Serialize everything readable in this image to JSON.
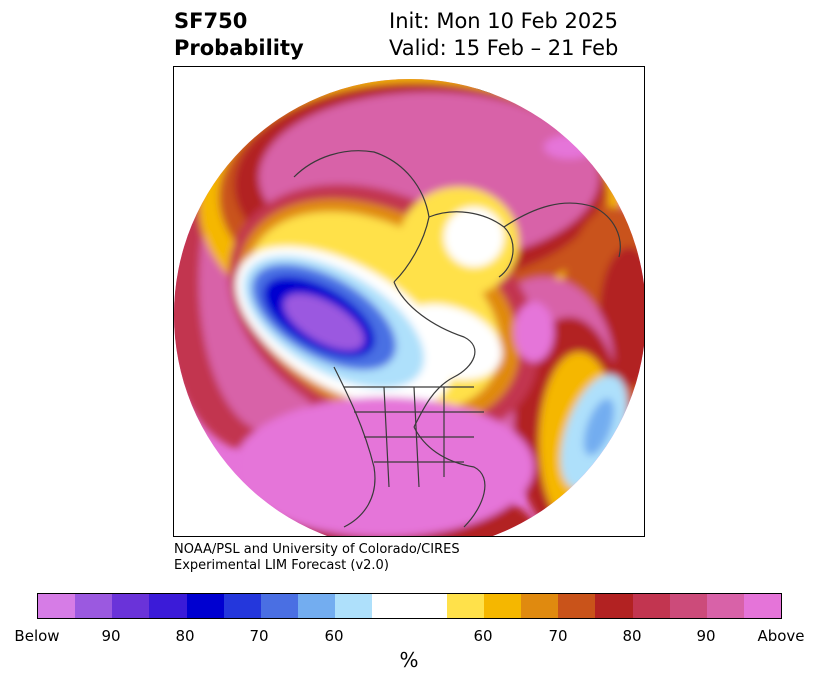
{
  "header": {
    "title_line1": "SF750",
    "title_line2": "Probability",
    "init_line": "Init: Mon 10 Feb 2025",
    "valid_line": "Valid: 15 Feb – 21 Feb"
  },
  "credit": {
    "line1": "NOAA/PSL and University of Colorado/CIRES",
    "line2": "Experimental LIM Forecast (v2.0)"
  },
  "colorbar": {
    "unit": "%",
    "colors": [
      "#d67ce6",
      "#9b59e0",
      "#6a33d9",
      "#3b1bd8",
      "#0000d0",
      "#2437dc",
      "#4a6fe3",
      "#73adf0",
      "#aee0fb",
      "#ffffff",
      "#ffffff",
      "#ffe14a",
      "#f5b700",
      "#e08a0f",
      "#c9531a",
      "#b22222",
      "#c23550",
      "#cc4b7a",
      "#d862a8",
      "#e574d9"
    ],
    "tick_labels": [
      "Below",
      "90",
      "80",
      "70",
      "60",
      "60",
      "70",
      "80",
      "90",
      "Above"
    ]
  },
  "map": {
    "projection": "north-polar-stereographic",
    "colors": {
      "above_strong": "#e574d9",
      "above_90": "#d862a8",
      "above_80": "#c23550",
      "above_75": "#b22222",
      "above_70": "#c9531a",
      "above_65": "#e08a0f",
      "above_60": "#f5b700",
      "above_55": "#ffe14a",
      "neutral": "#ffffff",
      "below_55": "#aee0fb",
      "below_60": "#73adf0",
      "below_65": "#4a6fe3",
      "below_70": "#2437dc",
      "below_75": "#0000d0",
      "below_80": "#3b1bd8",
      "below_85": "#6a33d9",
      "below_90": "#9b59e0",
      "below_strong": "#d67ce6",
      "coastline": "#3a3a3a"
    }
  }
}
